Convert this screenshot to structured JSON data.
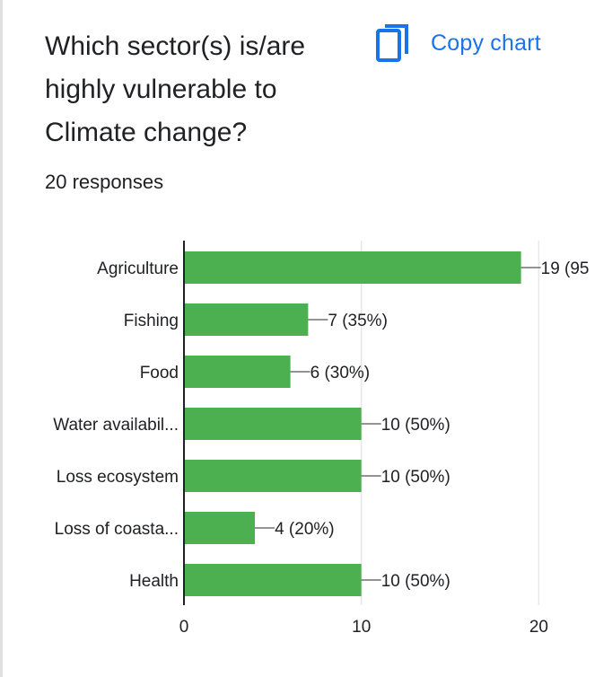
{
  "header": {
    "title": "Which sector(s) is/are highly vulnerable to Climate change?",
    "responses": "20 responses",
    "copy_label": "Copy chart"
  },
  "colors": {
    "bar": "#4caf50",
    "accent": "#1a73e8",
    "grid": "#e8e8e8",
    "axis": "#202124",
    "text": "#202124"
  },
  "icons": {
    "copy": "copy-icon"
  },
  "chart_data": {
    "type": "bar",
    "orientation": "horizontal",
    "categories": [
      "Agriculture",
      "Fishing",
      "Food",
      "Water availabil...",
      "Loss ecosystem",
      "Loss of coasta...",
      "Health"
    ],
    "values": [
      19,
      7,
      6,
      10,
      10,
      4,
      10
    ],
    "value_labels": [
      "19 (95",
      "7 (35%)",
      "6 (30%)",
      "10 (50%)",
      "10 (50%)",
      "4 (20%)",
      "10 (50%)"
    ],
    "xlim": [
      0,
      20
    ],
    "xticks": [
      "0",
      "10",
      "20"
    ],
    "grid": true,
    "legend": "none"
  }
}
